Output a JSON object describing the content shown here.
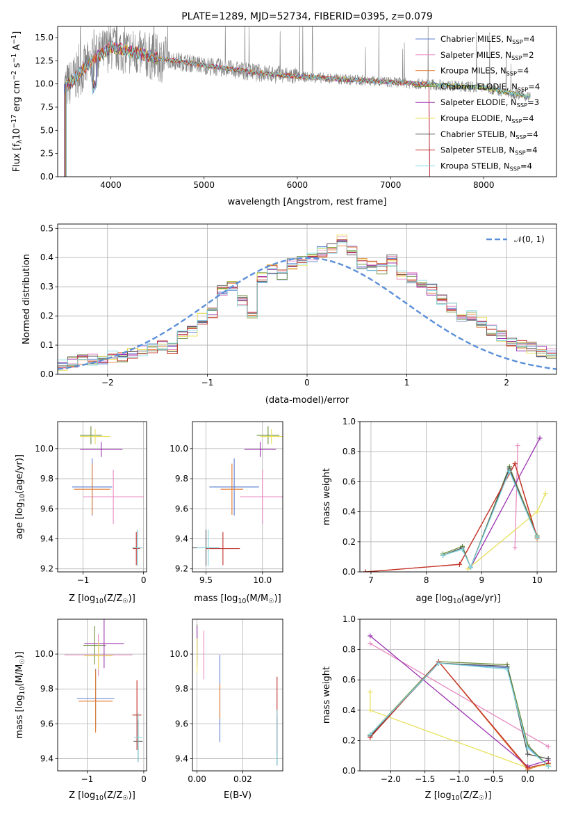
{
  "chart_data": [
    {
      "type": "line",
      "title": "PLATE=1289, MJD=52734, FIBERID=0395, z=0.079",
      "xlabel": "wavelength [Angstrom, rest frame]",
      "ylabel": "Flux [f",
      "ylabel_sub": "λ",
      "ylabel_mid": "10",
      "ylabel_exp1": "−17",
      "ylabel_mid2": " erg cm",
      "ylabel_exp2": "−2",
      "ylabel_mid3": " s",
      "ylabel_exp3": "−1",
      "ylabel_mid4": " A",
      "ylabel_exp4": "−1",
      "ylabel_end": "]",
      "xlim": [
        3430,
        8780
      ],
      "ylim": [
        0,
        16.2
      ],
      "xticks": [
        "4000",
        "5000",
        "6000",
        "7000",
        "8000"
      ],
      "xtick_values": [
        4000,
        5000,
        6000,
        7000,
        8000
      ],
      "yticks": [
        "0.0",
        "2.5",
        "5.0",
        "7.5",
        "10.0",
        "12.5",
        "15.0"
      ],
      "ytick_values": [
        0,
        2.5,
        5,
        7.5,
        10,
        12.5,
        15
      ],
      "legend_position": "upper-right",
      "data_x_range": [
        3500,
        8500
      ],
      "data_y_profile": {
        "x": [
          3500,
          3600,
          3800,
          4000,
          4200,
          4500,
          5000,
          5500,
          6000,
          6500,
          7000,
          7500,
          8000,
          8500
        ],
        "y": [
          9.5,
          10.5,
          12.5,
          14.0,
          13.5,
          12.8,
          12.0,
          11.3,
          10.8,
          10.5,
          10.2,
          9.9,
          9.6,
          8.6
        ]
      },
      "series": [
        {
          "name": "Chabrier MILES",
          "nssp": "4",
          "color": "#5b7fd0"
        },
        {
          "name": "Salpeter MILES",
          "nssp": "2",
          "color": "#e889c0"
        },
        {
          "name": "Kroupa MILES",
          "nssp": "4",
          "color": "#e07a2f"
        },
        {
          "name": "Chabrier ELODIE",
          "nssp": "4",
          "color": "#6b8e3a"
        },
        {
          "name": "Salpeter ELODIE",
          "nssp": "3",
          "color": "#9b30b0"
        },
        {
          "name": "Kroupa ELODIE",
          "nssp": "4",
          "color": "#e8e05a"
        },
        {
          "name": "Chabrier STELIB",
          "nssp": "4",
          "color": "#555555"
        },
        {
          "name": "Salpeter STELIB",
          "nssp": "4",
          "color": "#c0302a"
        },
        {
          "name": "Kroupa STELIB",
          "nssp": "4",
          "color": "#80d8e0"
        }
      ],
      "nssp_label": "N",
      "nssp_sub": "SSP",
      "data_color": "#808080"
    },
    {
      "type": "histogram",
      "xlabel": "(data-model)/error",
      "ylabel": "Normed distribution",
      "xlim": [
        -2.5,
        2.5
      ],
      "ylim": [
        0,
        0.515
      ],
      "xticks": [
        "−2",
        "−1",
        "0",
        "1",
        "2"
      ],
      "xtick_values": [
        -2,
        -1,
        0,
        1,
        2
      ],
      "yticks": [
        "0.0",
        "0.1",
        "0.2",
        "0.3",
        "0.4",
        "0.5"
      ],
      "ytick_values": [
        0,
        0.1,
        0.2,
        0.3,
        0.4,
        0.5
      ],
      "bin_edges_start": -2.5,
      "bin_width": 0.1,
      "values": [
        0.03,
        0.04,
        0.05,
        0.05,
        0.05,
        0.06,
        0.06,
        0.07,
        0.08,
        0.09,
        0.1,
        0.09,
        0.13,
        0.15,
        0.19,
        0.21,
        0.29,
        0.3,
        0.25,
        0.21,
        0.33,
        0.36,
        0.34,
        0.38,
        0.39,
        0.4,
        0.42,
        0.43,
        0.46,
        0.42,
        0.38,
        0.37,
        0.36,
        0.39,
        0.34,
        0.33,
        0.31,
        0.29,
        0.26,
        0.23,
        0.2,
        0.2,
        0.18,
        0.15,
        0.13,
        0.11,
        0.1,
        0.09,
        0.08,
        0.07,
        0.05
      ],
      "legend_label": "𝒩(0, 1)",
      "legend_position": "upper-right",
      "normal_color": "#5b8fd8"
    },
    {
      "type": "errorbar",
      "xlabel": "Z [log",
      "xlabel_sub": "10",
      "xlabel_end": "(Z/Z",
      "xlabel_sun": "☉",
      "xlabel_close": ")]",
      "ylabel": "age  [log",
      "ylabel_sub": "10",
      "ylabel_end": "(age/yr)]",
      "xlim": [
        -1.42,
        0.05
      ],
      "ylim": [
        9.18,
        10.18
      ],
      "xticks": [
        "−1",
        "0"
      ],
      "xtick_values": [
        -1,
        0
      ],
      "yticks": [
        "9.2",
        "9.4",
        "9.6",
        "9.8",
        "10.0"
      ],
      "ytick_values": [
        9.2,
        9.4,
        9.6,
        9.8,
        10.0
      ],
      "points": [
        {
          "series": 0,
          "x": -0.85,
          "xerr": 0.33,
          "y": 9.745,
          "yerr": 0.19
        },
        {
          "series": 1,
          "x": -0.5,
          "xerr": 0.5,
          "y": 9.68,
          "yerr": 0.18
        },
        {
          "series": 2,
          "x": -0.85,
          "xerr": 0.3,
          "y": 9.73,
          "yerr": 0.17
        },
        {
          "series": 3,
          "x": -0.87,
          "xerr": 0.18,
          "y": 10.09,
          "yerr": 0.06
        },
        {
          "series": 4,
          "x": -0.7,
          "xerr": 0.35,
          "y": 9.995,
          "yerr": 0.05
        },
        {
          "series": 5,
          "x": -0.8,
          "xerr": 0.25,
          "y": 10.08,
          "yerr": 0.05
        },
        {
          "series": 6,
          "x": -0.1,
          "xerr": 0.08,
          "y": 9.34,
          "yerr": 0.12
        },
        {
          "series": 7,
          "x": -0.12,
          "xerr": 0.06,
          "y": 9.335,
          "yerr": 0.11
        },
        {
          "series": 8,
          "x": -0.1,
          "xerr": 0.07,
          "y": 9.34,
          "yerr": 0.12
        }
      ]
    },
    {
      "type": "errorbar",
      "xlabel": "mass [log",
      "xlabel_sub": "10",
      "xlabel_end": "(M/M",
      "xlabel_sun": "☉",
      "xlabel_close": ")]",
      "xlim": [
        9.38,
        10.18
      ],
      "ylim": [
        9.18,
        10.18
      ],
      "xticks": [
        "9.5",
        "10.0"
      ],
      "xtick_values": [
        9.5,
        10.0
      ],
      "yticks": [
        "9.2",
        "9.4",
        "9.6",
        "9.8",
        "10.0"
      ],
      "ytick_values": [
        9.2,
        9.4,
        9.6,
        9.8,
        10.0
      ],
      "points": [
        {
          "series": 0,
          "x": 9.75,
          "xerr": 0.22,
          "y": 9.745,
          "yerr": 0.19
        },
        {
          "series": 1,
          "x": 10.0,
          "xerr": 0.2,
          "y": 9.68,
          "yerr": 0.18
        },
        {
          "series": 2,
          "x": 9.73,
          "xerr": 0.1,
          "y": 9.73,
          "yerr": 0.17
        },
        {
          "series": 3,
          "x": 10.05,
          "xerr": 0.1,
          "y": 10.09,
          "yerr": 0.06
        },
        {
          "series": 4,
          "x": 9.98,
          "xerr": 0.14,
          "y": 9.995,
          "yerr": 0.05
        },
        {
          "series": 5,
          "x": 10.08,
          "xerr": 0.1,
          "y": 10.08,
          "yerr": 0.05
        },
        {
          "series": 6,
          "x": 9.5,
          "xerr": 0.12,
          "y": 9.34,
          "yerr": 0.12
        },
        {
          "series": 7,
          "x": 9.65,
          "xerr": 0.15,
          "y": 9.335,
          "yerr": 0.11
        },
        {
          "series": 8,
          "x": 9.52,
          "xerr": 0.1,
          "y": 9.34,
          "yerr": 0.12
        }
      ]
    },
    {
      "type": "line",
      "xlabel": "age  [log",
      "xlabel_sub": "10",
      "xlabel_end": "(age/yr)]",
      "ylabel": "mass weight",
      "xlim": [
        6.8,
        10.35
      ],
      "ylim": [
        0,
        1.0
      ],
      "xticks": [
        "7",
        "8",
        "9",
        "10"
      ],
      "xtick_values": [
        7,
        8,
        9,
        10
      ],
      "yticks": [
        "0.0",
        "0.2",
        "0.4",
        "0.6",
        "0.8",
        "1.0"
      ],
      "ytick_values": [
        0,
        0.2,
        0.4,
        0.6,
        0.8,
        1.0
      ],
      "series_points": [
        {
          "series": 0,
          "x": [
            8.3,
            8.65,
            8.8,
            9.5,
            10.0
          ],
          "y": [
            0.11,
            0.16,
            0.03,
            0.68,
            0.23
          ]
        },
        {
          "series": 1,
          "x": [
            9.6,
            9.65
          ],
          "y": [
            0.16,
            0.84
          ]
        },
        {
          "series": 2,
          "x": [
            6.9,
            8.6,
            9.6,
            10.0
          ],
          "y": [
            0.0,
            0.05,
            0.72,
            0.22
          ]
        },
        {
          "series": 3,
          "x": [
            8.3,
            8.65,
            8.8,
            9.5,
            10.0
          ],
          "y": [
            0.12,
            0.17,
            0.03,
            0.7,
            0.24
          ]
        },
        {
          "series": 4,
          "x": [
            8.8,
            10.05
          ],
          "y": [
            0.03,
            0.89
          ]
        },
        {
          "series": 5,
          "x": [
            8.75,
            10.0,
            10.15
          ],
          "y": [
            0.02,
            0.4,
            0.52
          ]
        },
        {
          "series": 6,
          "x": [
            8.3,
            8.65,
            8.8,
            9.5,
            10.0
          ],
          "y": [
            0.11,
            0.16,
            0.03,
            0.69,
            0.23
          ]
        },
        {
          "series": 7,
          "x": [
            6.9,
            8.6,
            9.6,
            10.0
          ],
          "y": [
            0.0,
            0.05,
            0.72,
            0.23
          ]
        },
        {
          "series": 8,
          "x": [
            8.3,
            8.65,
            8.8,
            9.5,
            10.0
          ],
          "y": [
            0.11,
            0.15,
            0.03,
            0.67,
            0.23
          ]
        }
      ]
    },
    {
      "type": "errorbar",
      "xlabel": "Z [log",
      "xlabel_sub": "10",
      "xlabel_end": "(Z/Z",
      "xlabel_sun": "☉",
      "xlabel_close": ")]",
      "ylabel": "mass [log",
      "ylabel_sub": "10",
      "ylabel_end": "(M/M",
      "ylabel_sun": "☉",
      "ylabel_close": ")]",
      "xlim": [
        -1.52,
        0.05
      ],
      "ylim": [
        9.33,
        10.2
      ],
      "xticks": [
        "−1",
        "0"
      ],
      "xtick_values": [
        -1,
        0
      ],
      "yticks": [
        "9.4",
        "9.6",
        "9.8",
        "10.0"
      ],
      "ytick_values": [
        9.4,
        9.6,
        9.8,
        10.0
      ],
      "points": [
        {
          "series": 0,
          "x": -0.85,
          "xerr": 0.33,
          "y": 9.745,
          "yerr": 0.17
        },
        {
          "series": 1,
          "x": -0.8,
          "xerr": 0.6,
          "y": 9.995,
          "yerr": 0.12
        },
        {
          "series": 2,
          "x": -0.85,
          "xerr": 0.3,
          "y": 9.73,
          "yerr": 0.18
        },
        {
          "series": 3,
          "x": -0.87,
          "xerr": 0.2,
          "y": 10.05,
          "yerr": 0.11
        },
        {
          "series": 4,
          "x": -0.7,
          "xerr": 0.35,
          "y": 10.06,
          "yerr": 0.14
        },
        {
          "series": 5,
          "x": -0.8,
          "xerr": 0.25,
          "y": 9.99,
          "yerr": 0.08
        },
        {
          "series": 6,
          "x": -0.1,
          "xerr": 0.08,
          "y": 9.5,
          "yerr": 0.12
        },
        {
          "series": 7,
          "x": -0.12,
          "xerr": 0.08,
          "y": 9.65,
          "yerr": 0.2
        },
        {
          "series": 8,
          "x": -0.1,
          "xerr": 0.07,
          "y": 9.52,
          "yerr": 0.14
        }
      ]
    },
    {
      "type": "errorbar",
      "xlabel": "E(B-V)",
      "xlim": [
        -0.002,
        0.0375
      ],
      "ylim": [
        9.33,
        10.2
      ],
      "xticks": [
        "0.00",
        "0.02"
      ],
      "xtick_values": [
        0.0,
        0.02
      ],
      "yticks": [
        "9.4",
        "9.6",
        "9.8",
        "10.0"
      ],
      "ytick_values": [
        9.4,
        9.6,
        9.8,
        10.0
      ],
      "points": [
        {
          "series": 0,
          "x": 0.01,
          "xerr": 0,
          "y": 9.745,
          "yerr": 0.25
        },
        {
          "series": 1,
          "x": 0.003,
          "xerr": 0,
          "y": 9.995,
          "yerr": 0.14
        },
        {
          "series": 2,
          "x": 0.01,
          "xerr": 0,
          "y": 9.73,
          "yerr": 0.1
        },
        {
          "series": 3,
          "x": 0.0,
          "xerr": 0,
          "y": 10.05,
          "yerr": 0.12
        },
        {
          "series": 4,
          "x": 0.0,
          "xerr": 0,
          "y": 10.06,
          "yerr": 0.1
        },
        {
          "series": 5,
          "x": 0.0,
          "xerr": 0,
          "y": 9.99,
          "yerr": 0.1
        },
        {
          "series": 6,
          "x": 0.035,
          "xerr": 0,
          "y": 9.5,
          "yerr": 0.14
        },
        {
          "series": 7,
          "x": 0.035,
          "xerr": 0,
          "y": 9.65,
          "yerr": 0.22
        },
        {
          "series": 8,
          "x": 0.035,
          "xerr": 0,
          "y": 9.52,
          "yerr": 0.16
        }
      ]
    },
    {
      "type": "line",
      "xlabel": "Z [log",
      "xlabel_sub": "10",
      "xlabel_end": "(Z/Z",
      "xlabel_sun": "☉",
      "xlabel_close": ")]",
      "ylabel": "mass weight",
      "xlim": [
        -2.45,
        0.42
      ],
      "ylim": [
        0,
        1.0
      ],
      "xticks": [
        "−2.0",
        "−1.5",
        "−1.0",
        "−0.5",
        "0.0"
      ],
      "xtick_values": [
        -2,
        -1.5,
        -1,
        -0.5,
        0
      ],
      "yticks": [
        "0.0",
        "0.2",
        "0.4",
        "0.6",
        "0.8",
        "1.0"
      ],
      "ytick_values": [
        0,
        0.2,
        0.4,
        0.6,
        0.8,
        1.0
      ],
      "series_points": [
        {
          "series": 0,
          "x": [
            -2.3,
            -1.3,
            -0.3,
            0.0,
            0.3
          ],
          "y": [
            0.23,
            0.71,
            0.68,
            0.16,
            0.03
          ]
        },
        {
          "series": 1,
          "x": [
            -2.3,
            0.3
          ],
          "y": [
            0.84,
            0.16
          ]
        },
        {
          "series": 2,
          "x": [
            -2.3,
            -1.3,
            0.0,
            0.3
          ],
          "y": [
            0.22,
            0.72,
            0.01,
            0.05
          ]
        },
        {
          "series": 3,
          "x": [
            -2.3,
            -1.3,
            -0.3,
            0.0,
            0.3
          ],
          "y": [
            0.24,
            0.72,
            0.7,
            0.17,
            0.03
          ]
        },
        {
          "series": 4,
          "x": [
            -2.3,
            0.0,
            0.3
          ],
          "y": [
            0.89,
            0.03,
            0.07
          ]
        },
        {
          "series": 5,
          "x": [
            -2.3,
            -2.3,
            0.0,
            0.3
          ],
          "y": [
            0.52,
            0.4,
            0.02,
            0.04
          ]
        },
        {
          "series": 6,
          "x": [
            -2.3,
            -1.3,
            -0.3,
            0.0,
            0.3
          ],
          "y": [
            0.23,
            0.71,
            0.69,
            0.11,
            0.08
          ]
        },
        {
          "series": 7,
          "x": [
            -2.3,
            -1.3,
            0.0,
            0.3
          ],
          "y": [
            0.22,
            0.72,
            0.02,
            0.05
          ]
        },
        {
          "series": 8,
          "x": [
            -2.3,
            -1.3,
            -0.3,
            0.0,
            0.3
          ],
          "y": [
            0.24,
            0.71,
            0.67,
            0.15,
            0.03
          ]
        }
      ]
    }
  ]
}
